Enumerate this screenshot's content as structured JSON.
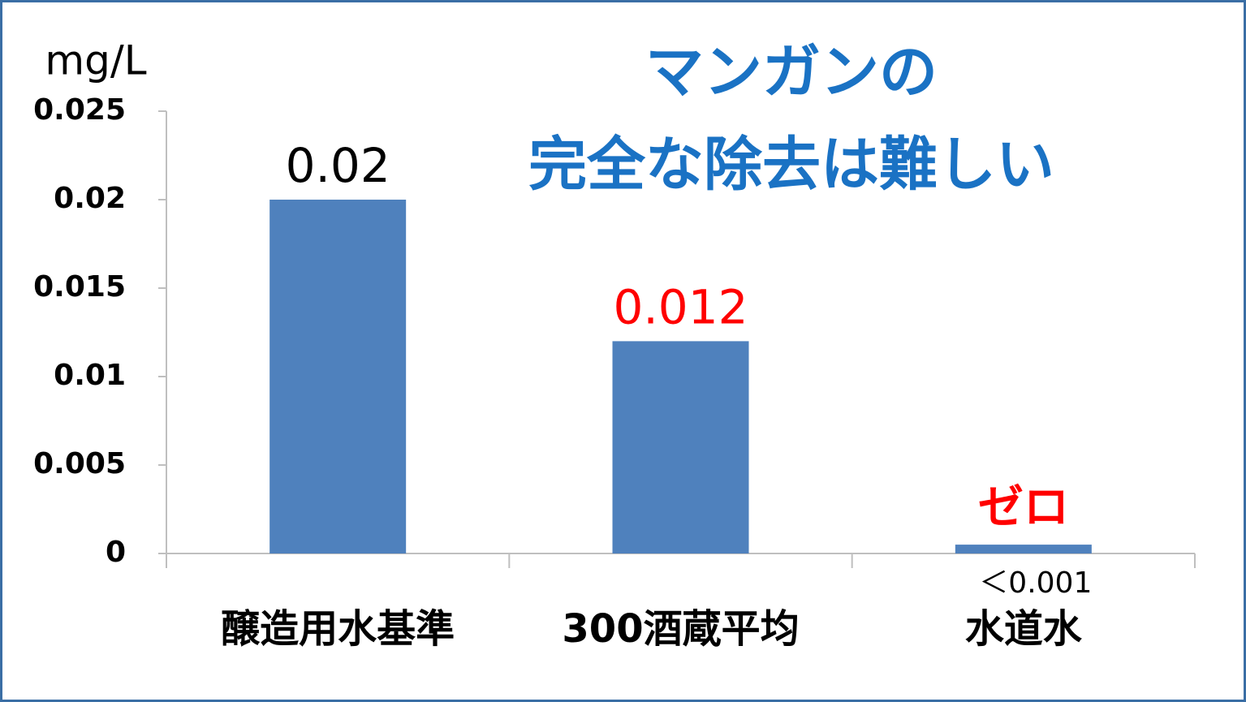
{
  "chart_data": {
    "type": "bar",
    "title": [
      "マンガンの",
      "完全な除去は難しい"
    ],
    "title_color": "#1a72c4",
    "y_axis_label": "mg/L",
    "categories": [
      "醸造用水基準",
      "300酒蔵平均",
      "水道水"
    ],
    "values": [
      0.02,
      0.012,
      0.0005
    ],
    "value_labels": [
      "0.02",
      "0.012",
      null
    ],
    "value_label_colors": [
      "#000000",
      "#ff0000",
      null
    ],
    "color": "#4f81bd",
    "ylim": [
      0,
      0.025
    ],
    "yticks": [
      0,
      0.005,
      0.01,
      0.015,
      0.02,
      0.025
    ],
    "grid": false,
    "annotations": [
      {
        "text": "ゼロ",
        "category": 2,
        "color": "#ff0000"
      },
      {
        "text": "＜0.001",
        "category": 2,
        "color": "#000000"
      }
    ]
  }
}
